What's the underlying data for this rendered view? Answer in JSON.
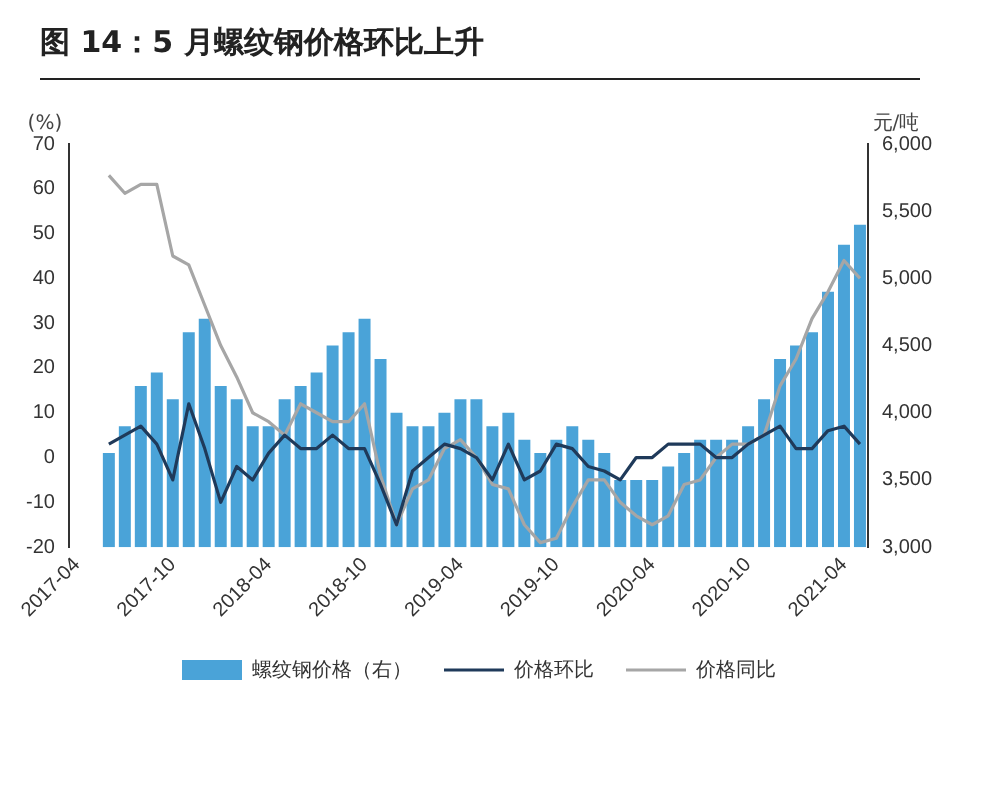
{
  "chart_data": {
    "type": "bar",
    "title": "图 14：5 月螺纹钢价格环比上升",
    "ylabel": "(%)",
    "y2label": "元/吨",
    "categories": [
      "2017-04",
      null,
      null,
      null,
      null,
      null,
      "2017-10",
      null,
      null,
      null,
      null,
      null,
      "2018-04",
      null,
      null,
      null,
      null,
      null,
      "2018-10",
      null,
      null,
      null,
      null,
      null,
      "2019-04",
      null,
      null,
      null,
      null,
      null,
      "2019-10",
      null,
      null,
      null,
      null,
      null,
      "2020-04",
      null,
      null,
      null,
      null,
      null,
      "2020-10",
      null,
      null,
      null,
      null,
      null,
      "2021-04",
      null
    ],
    "series": [
      {
        "name": "螺纹钢价格（右）",
        "axis": "y2",
        "color": "#4aa3d8",
        "values": [
          null,
          null,
          3700,
          3900,
          4200,
          4300,
          4100,
          4600,
          4700,
          4200,
          4100,
          3900,
          3900,
          4100,
          4200,
          4300,
          4500,
          4600,
          4700,
          4400,
          4000,
          3900,
          3900,
          4000,
          4100,
          4100,
          3900,
          4000,
          3800,
          3700,
          3800,
          3900,
          3800,
          3700,
          3500,
          3500,
          3500,
          3600,
          3700,
          3800,
          3800,
          3800,
          3900,
          4100,
          4400,
          4500,
          4600,
          4900,
          5250,
          5400
        ]
      },
      {
        "name": "价格环比",
        "type": "line",
        "color": "#1f3a5a",
        "values": [
          null,
          null,
          3,
          5,
          7,
          3,
          -5,
          12,
          2,
          -10,
          -2,
          -5,
          1,
          5,
          2,
          2,
          5,
          2,
          2,
          -6,
          -15,
          -3,
          0,
          3,
          2,
          0,
          -5,
          3,
          -5,
          -3,
          3,
          2,
          -2,
          -3,
          -5,
          0,
          0,
          3,
          3,
          3,
          0,
          0,
          3,
          5,
          7,
          2,
          2,
          6,
          7,
          3
        ]
      },
      {
        "name": "价格同比",
        "type": "line",
        "color": "#a6a6a6",
        "values": [
          null,
          null,
          63,
          59,
          61,
          61,
          45,
          43,
          34,
          25,
          18,
          10,
          8,
          5,
          12,
          10,
          8,
          8,
          12,
          -4,
          -15,
          -7,
          -5,
          2,
          4,
          0,
          -6,
          -7,
          -15,
          -19,
          -18,
          -11,
          -5,
          -5,
          -10,
          -13,
          -15,
          -13,
          -6,
          -5,
          0,
          3,
          3,
          5,
          16,
          22,
          31,
          37,
          44,
          40
        ]
      }
    ],
    "ylim": [
      -20,
      70
    ],
    "yticks": [
      -20,
      -10,
      0,
      10,
      20,
      30,
      40,
      50,
      60,
      70
    ],
    "y2lim": [
      3000,
      6000
    ],
    "y2ticks": [
      {
        "value": 3000,
        "label": "3,000"
      },
      {
        "value": 3500,
        "label": "3,500"
      },
      {
        "value": 4000,
        "label": "4,000"
      },
      {
        "value": 4500,
        "label": "4,500"
      },
      {
        "value": 5000,
        "label": "5,000"
      },
      {
        "value": 5500,
        "label": "5,500"
      },
      {
        "value": 6000,
        "label": "6,000"
      }
    ],
    "grid": false,
    "legend": "bottom",
    "marker": "none",
    "line_style": "solid"
  }
}
